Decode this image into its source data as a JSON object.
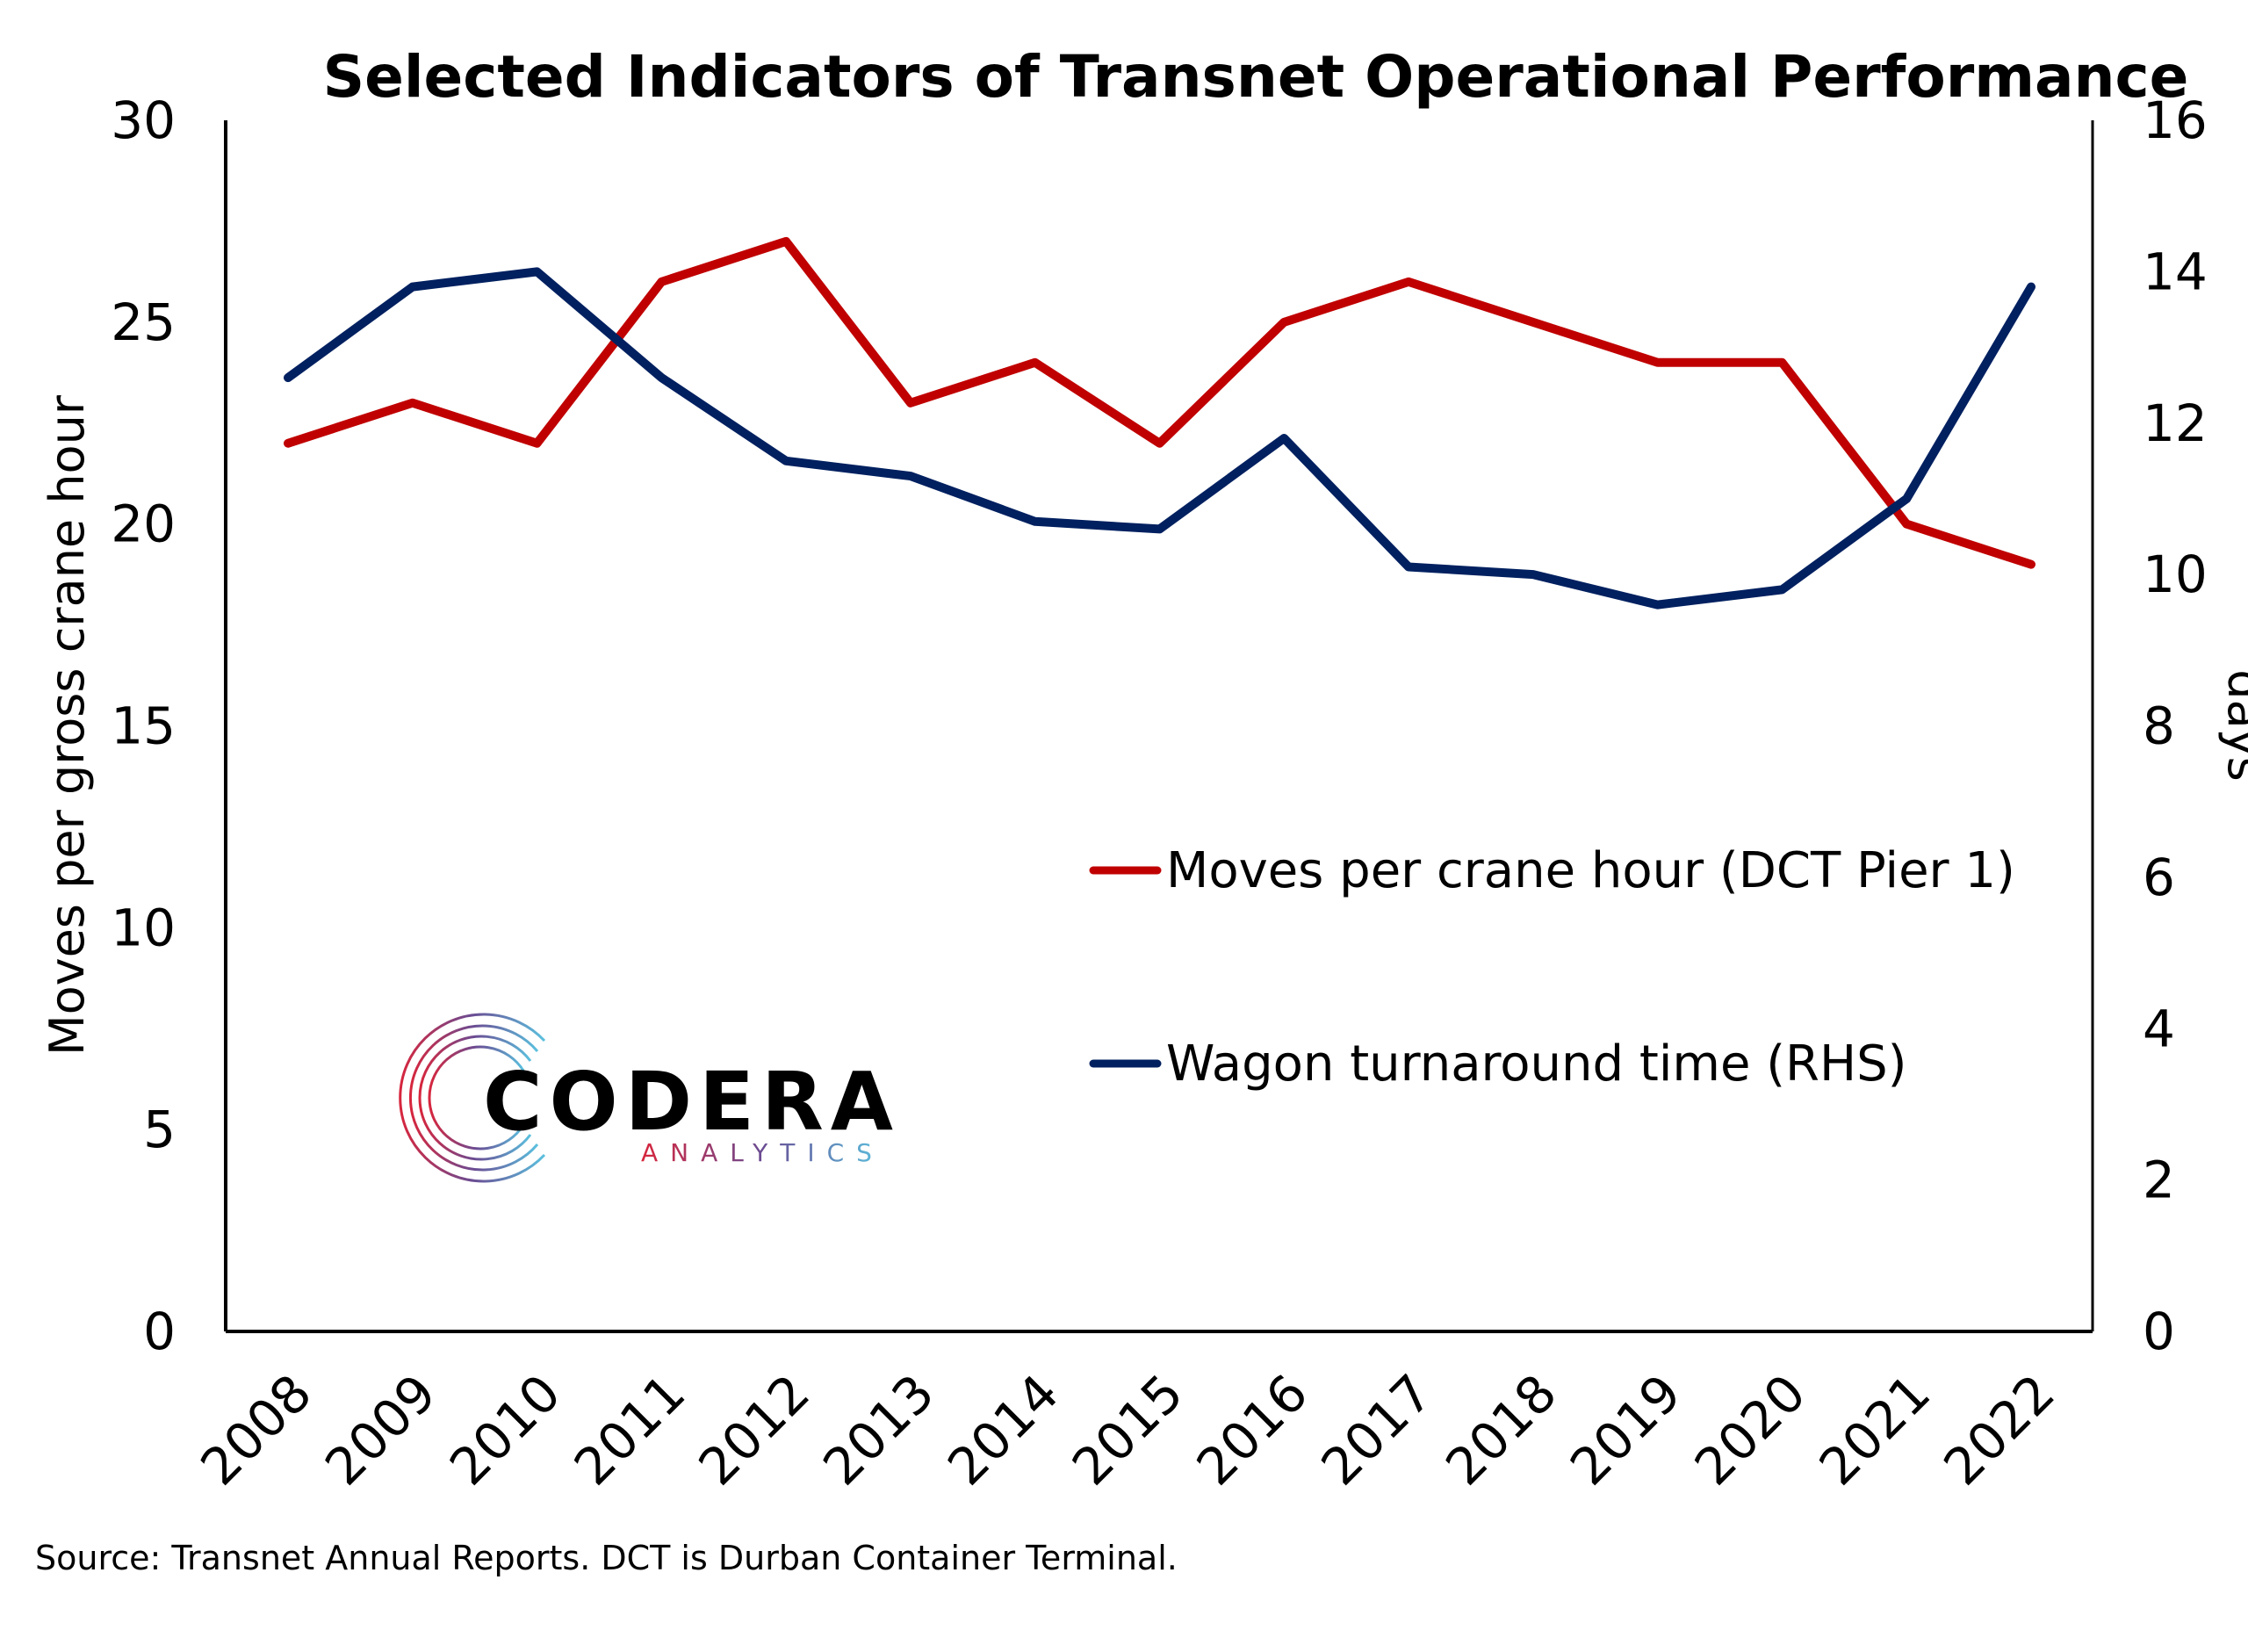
{
  "chart_data": {
    "type": "line",
    "title": "Selected Indicators of Transnet Operational Performance",
    "x": [
      "2008",
      "2009",
      "2010",
      "2011",
      "2012",
      "2013",
      "2014",
      "2015",
      "2016",
      "2017",
      "2018",
      "2019",
      "2020",
      "2021",
      "2022"
    ],
    "ylabel": "Moves per gross crane hour",
    "y2label": "days",
    "ylim": [
      0,
      30
    ],
    "y2lim": [
      0,
      16
    ],
    "yticks": [
      "0",
      "5",
      "10",
      "15",
      "20",
      "25",
      "30"
    ],
    "y2ticks": [
      "0",
      "2",
      "4",
      "6",
      "8",
      "10",
      "12",
      "14",
      "16"
    ],
    "grid": false,
    "legend_position": "center-right",
    "series": [
      {
        "name": "Moves per crane hour (DCT Pier 1)",
        "axis": "left",
        "color": "#C00000",
        "values": [
          22,
          23,
          22,
          26,
          27,
          23,
          24,
          22,
          25,
          26,
          25,
          24,
          24,
          20,
          19
        ]
      },
      {
        "name": "Wagon turnaround time (RHS)",
        "axis": "right",
        "color": "#002060",
        "values": [
          12.6,
          13.8,
          14.0,
          12.6,
          11.5,
          11.3,
          10.7,
          10.6,
          11.8,
          10.1,
          10.0,
          9.6,
          9.8,
          11.0,
          13.8
        ]
      }
    ]
  },
  "logo": {
    "main": "CODERA",
    "sub": "ANALYTICS"
  },
  "source_note": "Source: Transnet Annual Reports. DCT is Durban Container Terminal."
}
